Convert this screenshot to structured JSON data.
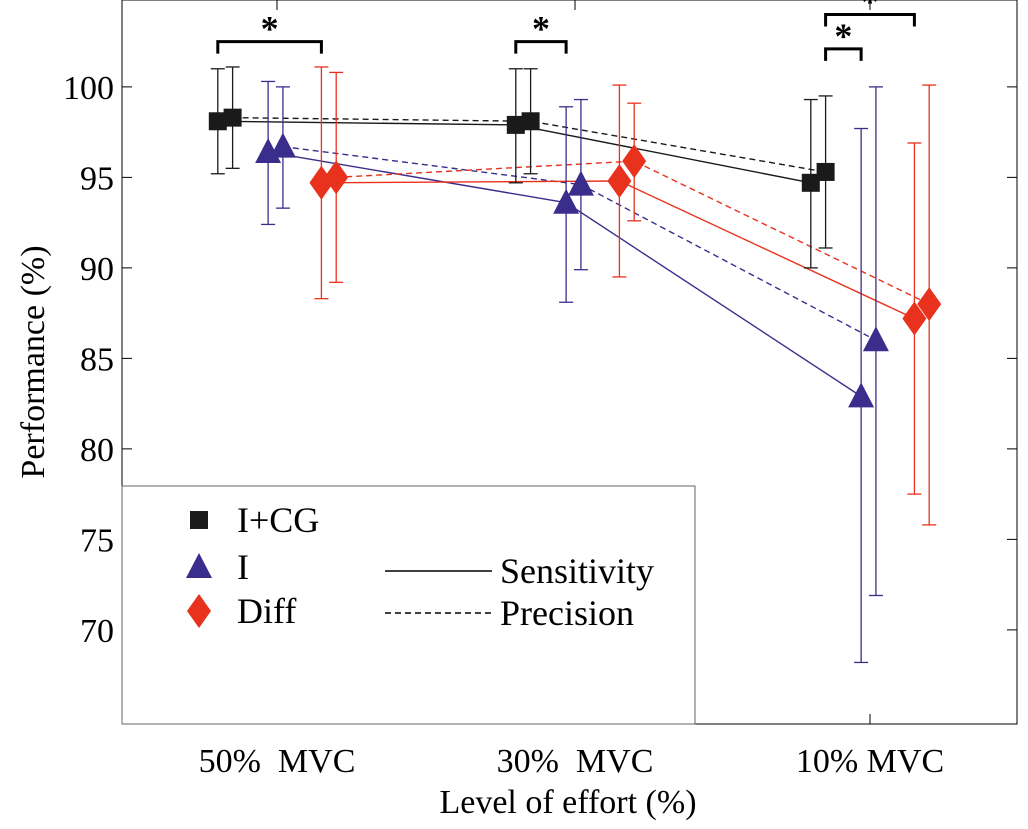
{
  "chart_data": {
    "type": "scatter",
    "ylabel": "Performance (%)",
    "xlabel": "Level of effort (%)",
    "ylim": [
      64.8,
      104.8
    ],
    "yticks": [
      70,
      75,
      80,
      85,
      90,
      95,
      100
    ],
    "grid": false,
    "categories": [
      "50%  MVC",
      "30%  MVC",
      "10% MVC"
    ],
    "legend": {
      "placement": "bottom-left",
      "groups": [
        {
          "key": "icg",
          "label": "I+CG",
          "marker": "square",
          "color": "#1a1a1a"
        },
        {
          "key": "i",
          "label": "I",
          "marker": "triangle",
          "color": "#3a2d8c"
        },
        {
          "key": "diff",
          "label": "Diff",
          "marker": "diamond",
          "color": "#e8321e"
        }
      ],
      "styles": [
        {
          "label": "Sensitivity",
          "dash": "solid"
        },
        {
          "label": "Precision",
          "dash": "dashed"
        }
      ]
    },
    "series": [
      {
        "group": "icg",
        "metric": "sensitivity",
        "offset": -0.2,
        "values": [
          98.1,
          97.9,
          94.7
        ],
        "err_low": [
          95.2,
          94.7,
          90.0
        ],
        "err_high": [
          101.0,
          101.0,
          99.3
        ]
      },
      {
        "group": "icg",
        "metric": "precision",
        "offset": -0.15,
        "values": [
          98.3,
          98.1,
          95.3
        ],
        "err_low": [
          95.5,
          95.2,
          91.1
        ],
        "err_high": [
          101.1,
          101.0,
          99.5
        ]
      },
      {
        "group": "i",
        "metric": "sensitivity",
        "offset": -0.03,
        "values": [
          96.4,
          93.6,
          82.9
        ],
        "err_low": [
          92.4,
          88.1,
          68.2
        ],
        "err_high": [
          100.3,
          98.9,
          97.7
        ]
      },
      {
        "group": "i",
        "metric": "precision",
        "offset": 0.02,
        "values": [
          96.7,
          94.6,
          86.0
        ],
        "err_low": [
          93.3,
          89.9,
          71.9
        ],
        "err_high": [
          100.0,
          99.3,
          100.0
        ]
      },
      {
        "group": "diff",
        "metric": "sensitivity",
        "offset": 0.15,
        "values": [
          94.7,
          94.8,
          87.2
        ],
        "err_low": [
          88.3,
          89.5,
          77.5
        ],
        "err_high": [
          101.1,
          100.1,
          96.9
        ]
      },
      {
        "group": "diff",
        "metric": "precision",
        "offset": 0.2,
        "values": [
          95.0,
          95.9,
          88.0
        ],
        "err_low": [
          89.2,
          92.6,
          75.8
        ],
        "err_high": [
          100.8,
          99.1,
          100.1
        ]
      }
    ],
    "significance": [
      {
        "label": "*",
        "x1": 0,
        "off1": -0.2,
        "x2": 0,
        "off2": 0.15,
        "y": 102.5
      },
      {
        "label": "*",
        "x1": 1,
        "off1": -0.2,
        "x2": 1,
        "off2": -0.03,
        "y": 102.5
      },
      {
        "label": "*",
        "x1": 2,
        "off1": -0.15,
        "x2": 2,
        "off2": -0.03,
        "y": 102.1
      },
      {
        "label": "*",
        "x1": 2,
        "off1": -0.15,
        "x2": 2,
        "off2": 0.15,
        "y": 104.0
      }
    ]
  }
}
